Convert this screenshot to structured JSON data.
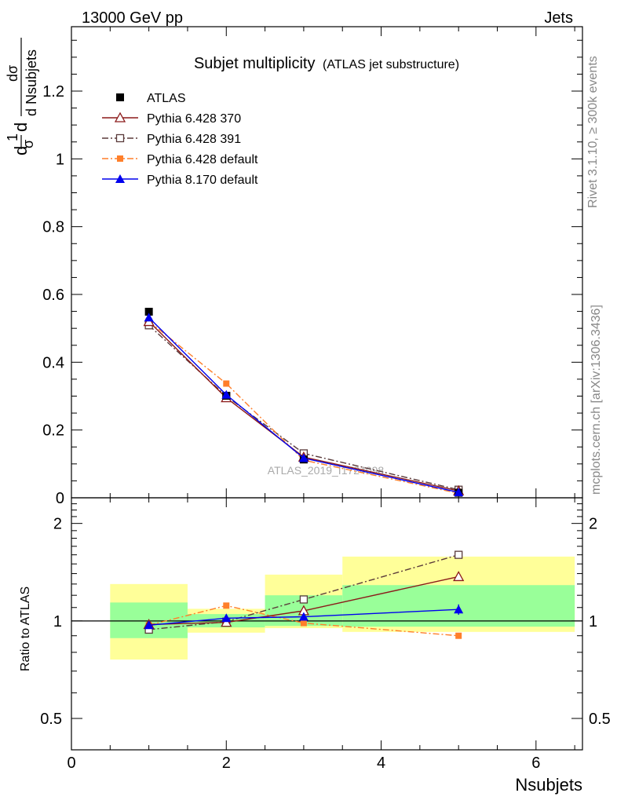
{
  "header": {
    "left": "13000 GeV pp",
    "right": "Jets"
  },
  "title": {
    "main": "Subjet multiplicity",
    "sub": "(ATLAS jet substructure)"
  },
  "side_text": {
    "rivet": "Rivet 3.1.10, ≥ 300k events",
    "mcplots": "mcplots.cern.ch [arXiv:1306.3436]"
  },
  "watermark": "ATLAS_2019_I1724098",
  "ylabel_main": {
    "prefix": "d",
    "one": "1",
    "sigma": "σ",
    "d": "d",
    "dsigma": "dσ",
    "denominator": "d Nsubjets"
  },
  "ylabel_ratio": "Ratio to ATLAS",
  "xlabel": "Nsubjets",
  "colors": {
    "atlas": "#000000",
    "p370": "#8b1a1a",
    "p391": "#5a3a3a",
    "pdef6": "#ff7f2a",
    "p8": "#0000ee",
    "band_inner": "#99ff99",
    "band_outer": "#ffff99"
  },
  "chart_data": [
    {
      "type": "line",
      "panel": "main",
      "xlim": [
        0,
        6.6
      ],
      "ylim": [
        0,
        1.39
      ],
      "yticks": [
        {
          "v": 0,
          "label": "0"
        },
        {
          "v": 0.2,
          "label": "0.2"
        },
        {
          "v": 0.4,
          "label": "0.4"
        },
        {
          "v": 0.6,
          "label": "0.6"
        },
        {
          "v": 0.8,
          "label": "0.8"
        },
        {
          "v": 1.0,
          "label": "1"
        },
        {
          "v": 1.2,
          "label": "1.2"
        }
      ],
      "x": [
        1,
        2,
        3,
        5
      ],
      "series": [
        {
          "name": "ATLAS",
          "key": "atlas",
          "values": [
            0.549,
            0.301,
            0.113,
            0.0148
          ]
        },
        {
          "name": "Pythia 6.428 370",
          "key": "p370",
          "values": [
            0.52,
            0.295,
            0.12,
            0.0205
          ]
        },
        {
          "name": "Pythia 6.428 391",
          "key": "p391",
          "values": [
            0.509,
            0.3,
            0.131,
            0.0238
          ]
        },
        {
          "name": "Pythia 6.428 default",
          "key": "pdef6",
          "values": [
            0.521,
            0.337,
            0.111,
            0.0133
          ]
        },
        {
          "name": "Pythia 8.170 default",
          "key": "p8",
          "values": [
            0.532,
            0.304,
            0.117,
            0.0161
          ]
        }
      ]
    },
    {
      "type": "line",
      "panel": "ratio",
      "ylabel": "Ratio to ATLAS",
      "xlabel": "Nsubjets",
      "xlim": [
        0,
        6.6
      ],
      "ylim": [
        0.4,
        2.4
      ],
      "ylog": true,
      "xticks": [
        {
          "v": 0,
          "label": "0"
        },
        {
          "v": 2,
          "label": "2"
        },
        {
          "v": 4,
          "label": "4"
        },
        {
          "v": 6,
          "label": "6"
        }
      ],
      "yticks": [
        {
          "v": 0.5,
          "label": "0.5"
        },
        {
          "v": 1,
          "label": "1"
        },
        {
          "v": 2,
          "label": "2"
        }
      ],
      "bands": [
        {
          "x0": 0.5,
          "x1": 1.5,
          "inner": [
            0.885,
            1.14
          ],
          "outer": [
            0.76,
            1.3
          ]
        },
        {
          "x0": 1.5,
          "x1": 2.5,
          "inner": [
            0.955,
            1.05
          ],
          "outer": [
            0.92,
            1.09
          ]
        },
        {
          "x0": 2.5,
          "x1": 3.5,
          "inner": [
            0.965,
            1.2
          ],
          "outer": [
            0.95,
            1.39
          ]
        },
        {
          "x0": 3.5,
          "x1": 6.5,
          "inner": [
            0.96,
            1.29
          ],
          "outer": [
            0.925,
            1.58
          ]
        }
      ],
      "x": [
        1,
        2,
        3,
        5
      ],
      "series": [
        {
          "name": "Pythia 6.428 370",
          "key": "p370",
          "values": [
            0.975,
            0.99,
            1.075,
            1.37
          ]
        },
        {
          "name": "Pythia 6.428 391",
          "key": "p391",
          "values": [
            0.94,
            0.995,
            1.165,
            1.6
          ]
        },
        {
          "name": "Pythia 6.428 default",
          "key": "pdef6",
          "values": [
            0.97,
            1.115,
            0.985,
            0.9
          ]
        },
        {
          "name": "Pythia 8.170 default",
          "key": "p8",
          "values": [
            0.97,
            1.02,
            1.03,
            1.085
          ],
          "err": [
            0.01,
            0.01,
            0.015,
            0.04
          ]
        }
      ]
    }
  ]
}
